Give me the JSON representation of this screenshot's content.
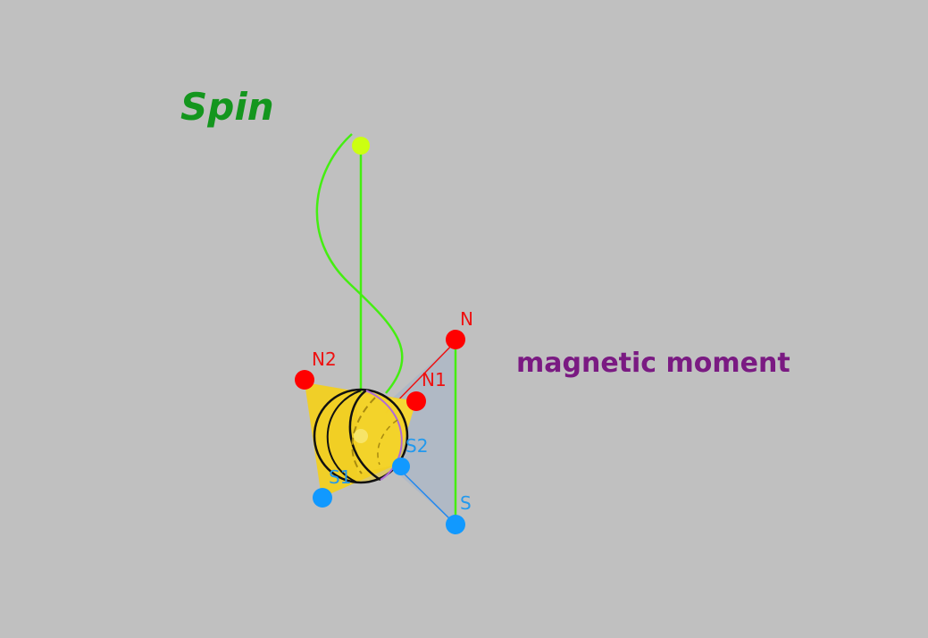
{
  "title": "Spin",
  "moment_label": "magnetic moment",
  "points": {
    "N": "N",
    "S": "S",
    "N1": "N1",
    "N2": "N2",
    "S1": "S1",
    "S2": "S2"
  },
  "colors": {
    "background": "#c0c0c0",
    "spin_title": "#14961e",
    "moment_title": "#7a1a82",
    "axis_line": "#44ee11",
    "axis_top_dot": "#ccff11",
    "north_dot": "#ff0000",
    "south_dot": "#1199ff",
    "north_label": "#ee1111",
    "south_label": "#2299ee",
    "cone_fill": "#f2d020",
    "sphere_stroke": "#111111",
    "plane_fill": "#a9b6c8"
  }
}
